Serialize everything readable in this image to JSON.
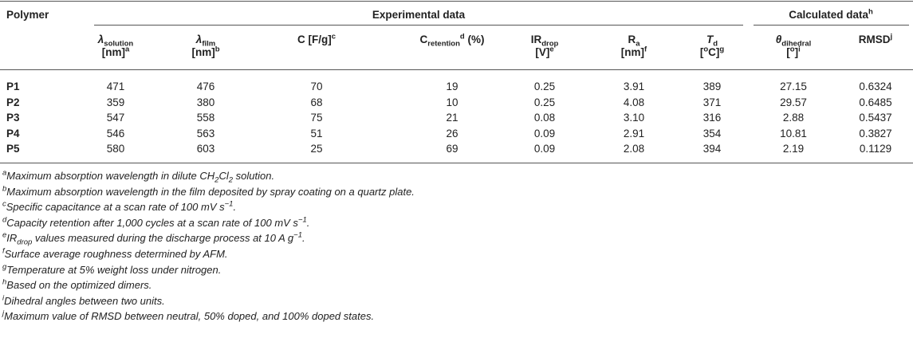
{
  "table": {
    "group_headers": [
      [
        {
          "t": "Polymer"
        }
      ],
      [
        {
          "t": "Experimental data"
        }
      ],
      [
        {
          "t": "Calculated data"
        },
        {
          "t": "h",
          "s": "sup"
        }
      ]
    ],
    "columns": [
      [
        [
          {
            "t": "λ",
            "s": "i"
          },
          {
            "t": "solution",
            "s": "sub"
          }
        ],
        [
          {
            "t": "[nm]"
          },
          {
            "t": "a",
            "s": "sup"
          }
        ]
      ],
      [
        [
          {
            "t": "λ",
            "s": "i"
          },
          {
            "t": "film",
            "s": "sub"
          }
        ],
        [
          {
            "t": "[nm]"
          },
          {
            "t": "b",
            "s": "sup"
          }
        ]
      ],
      [
        [
          {
            "t": "C [F/g]"
          },
          {
            "t": "c",
            "s": "sup"
          }
        ]
      ],
      [
        [
          {
            "t": "C"
          },
          {
            "t": "retention",
            "s": "sub"
          },
          {
            "t": "d",
            "s": "sup"
          },
          {
            "t": " (%)"
          }
        ]
      ],
      [
        [
          {
            "t": "IR"
          },
          {
            "t": "drop",
            "s": "sub"
          }
        ],
        [
          {
            "t": "[V]"
          },
          {
            "t": "e",
            "s": "sup"
          }
        ]
      ],
      [
        [
          {
            "t": "R"
          },
          {
            "t": "a",
            "s": "sub"
          }
        ],
        [
          {
            "t": "[nm]"
          },
          {
            "t": "f",
            "s": "sup"
          }
        ]
      ],
      [
        [
          {
            "t": "T",
            "s": "i"
          },
          {
            "t": "d",
            "s": "sub"
          }
        ],
        [
          {
            "t": "["
          },
          {
            "t": "o",
            "s": "sup"
          },
          {
            "t": "C]"
          },
          {
            "t": "g",
            "s": "sup"
          }
        ]
      ],
      [
        [
          {
            "t": "θ",
            "s": "i"
          },
          {
            "t": "dihedral",
            "s": "sub"
          }
        ],
        [
          {
            "t": "["
          },
          {
            "t": "o",
            "s": "sup"
          },
          {
            "t": "]"
          },
          {
            "t": "i",
            "s": "sup"
          }
        ]
      ],
      [
        [
          {
            "t": "RMSD"
          },
          {
            "t": "j",
            "s": "sup"
          }
        ]
      ]
    ],
    "rows": [
      [
        "P1",
        "471",
        "476",
        "70",
        "19",
        "0.25",
        "3.91",
        "389",
        "27.15",
        "0.6324"
      ],
      [
        "P2",
        "359",
        "380",
        "68",
        "10",
        "0.25",
        "4.08",
        "371",
        "29.57",
        "0.6485"
      ],
      [
        "P3",
        "547",
        "558",
        "75",
        "21",
        "0.08",
        "3.10",
        "316",
        "2.88",
        "0.5437"
      ],
      [
        "P4",
        "546",
        "563",
        "51",
        "26",
        "0.09",
        "2.91",
        "354",
        "10.81",
        "0.3827"
      ],
      [
        "P5",
        "580",
        "603",
        "25",
        "69",
        "0.09",
        "2.08",
        "394",
        "2.19",
        "0.1129"
      ]
    ],
    "footnotes": [
      [
        {
          "t": "a",
          "s": "sup"
        },
        {
          "t": "Maximum absorption wavelength in dilute CH"
        },
        {
          "t": "2",
          "s": "sub"
        },
        {
          "t": "Cl"
        },
        {
          "t": "2",
          "s": "sub"
        },
        {
          "t": " solution."
        }
      ],
      [
        {
          "t": "b",
          "s": "sup"
        },
        {
          "t": "Maximum absorption wavelength in the film deposited by spray coating on a quartz plate."
        }
      ],
      [
        {
          "t": "c",
          "s": "sup"
        },
        {
          "t": "Specific capacitance at a scan rate of 100 mV s"
        },
        {
          "t": "−1",
          "s": "sup"
        },
        {
          "t": "."
        }
      ],
      [
        {
          "t": "d",
          "s": "sup"
        },
        {
          "t": "Capacity retention after 1,000 cycles at a scan rate of 100 mV s"
        },
        {
          "t": "−1",
          "s": "sup"
        },
        {
          "t": "."
        }
      ],
      [
        {
          "t": "e",
          "s": "sup"
        },
        {
          "t": "IR"
        },
        {
          "t": "drop",
          "s": "sub"
        },
        {
          "t": " values measured during the discharge process at 10 A g"
        },
        {
          "t": "−1",
          "s": "sup"
        },
        {
          "t": "."
        }
      ],
      [
        {
          "t": "f",
          "s": "sup"
        },
        {
          "t": "Surface average roughness determined by AFM."
        }
      ],
      [
        {
          "t": "g",
          "s": "sup"
        },
        {
          "t": "Temperature at 5% weight loss under nitrogen."
        }
      ],
      [
        {
          "t": "h",
          "s": "sup"
        },
        {
          "t": "Based on the optimized dimers."
        }
      ],
      [
        {
          "t": "i",
          "s": "sup"
        },
        {
          "t": "Dihedral angles between two units."
        }
      ],
      [
        {
          "t": "j",
          "s": "sup"
        },
        {
          "t": "Maximum value of RMSD between neutral, 50% doped, and 100% doped states."
        }
      ]
    ]
  }
}
